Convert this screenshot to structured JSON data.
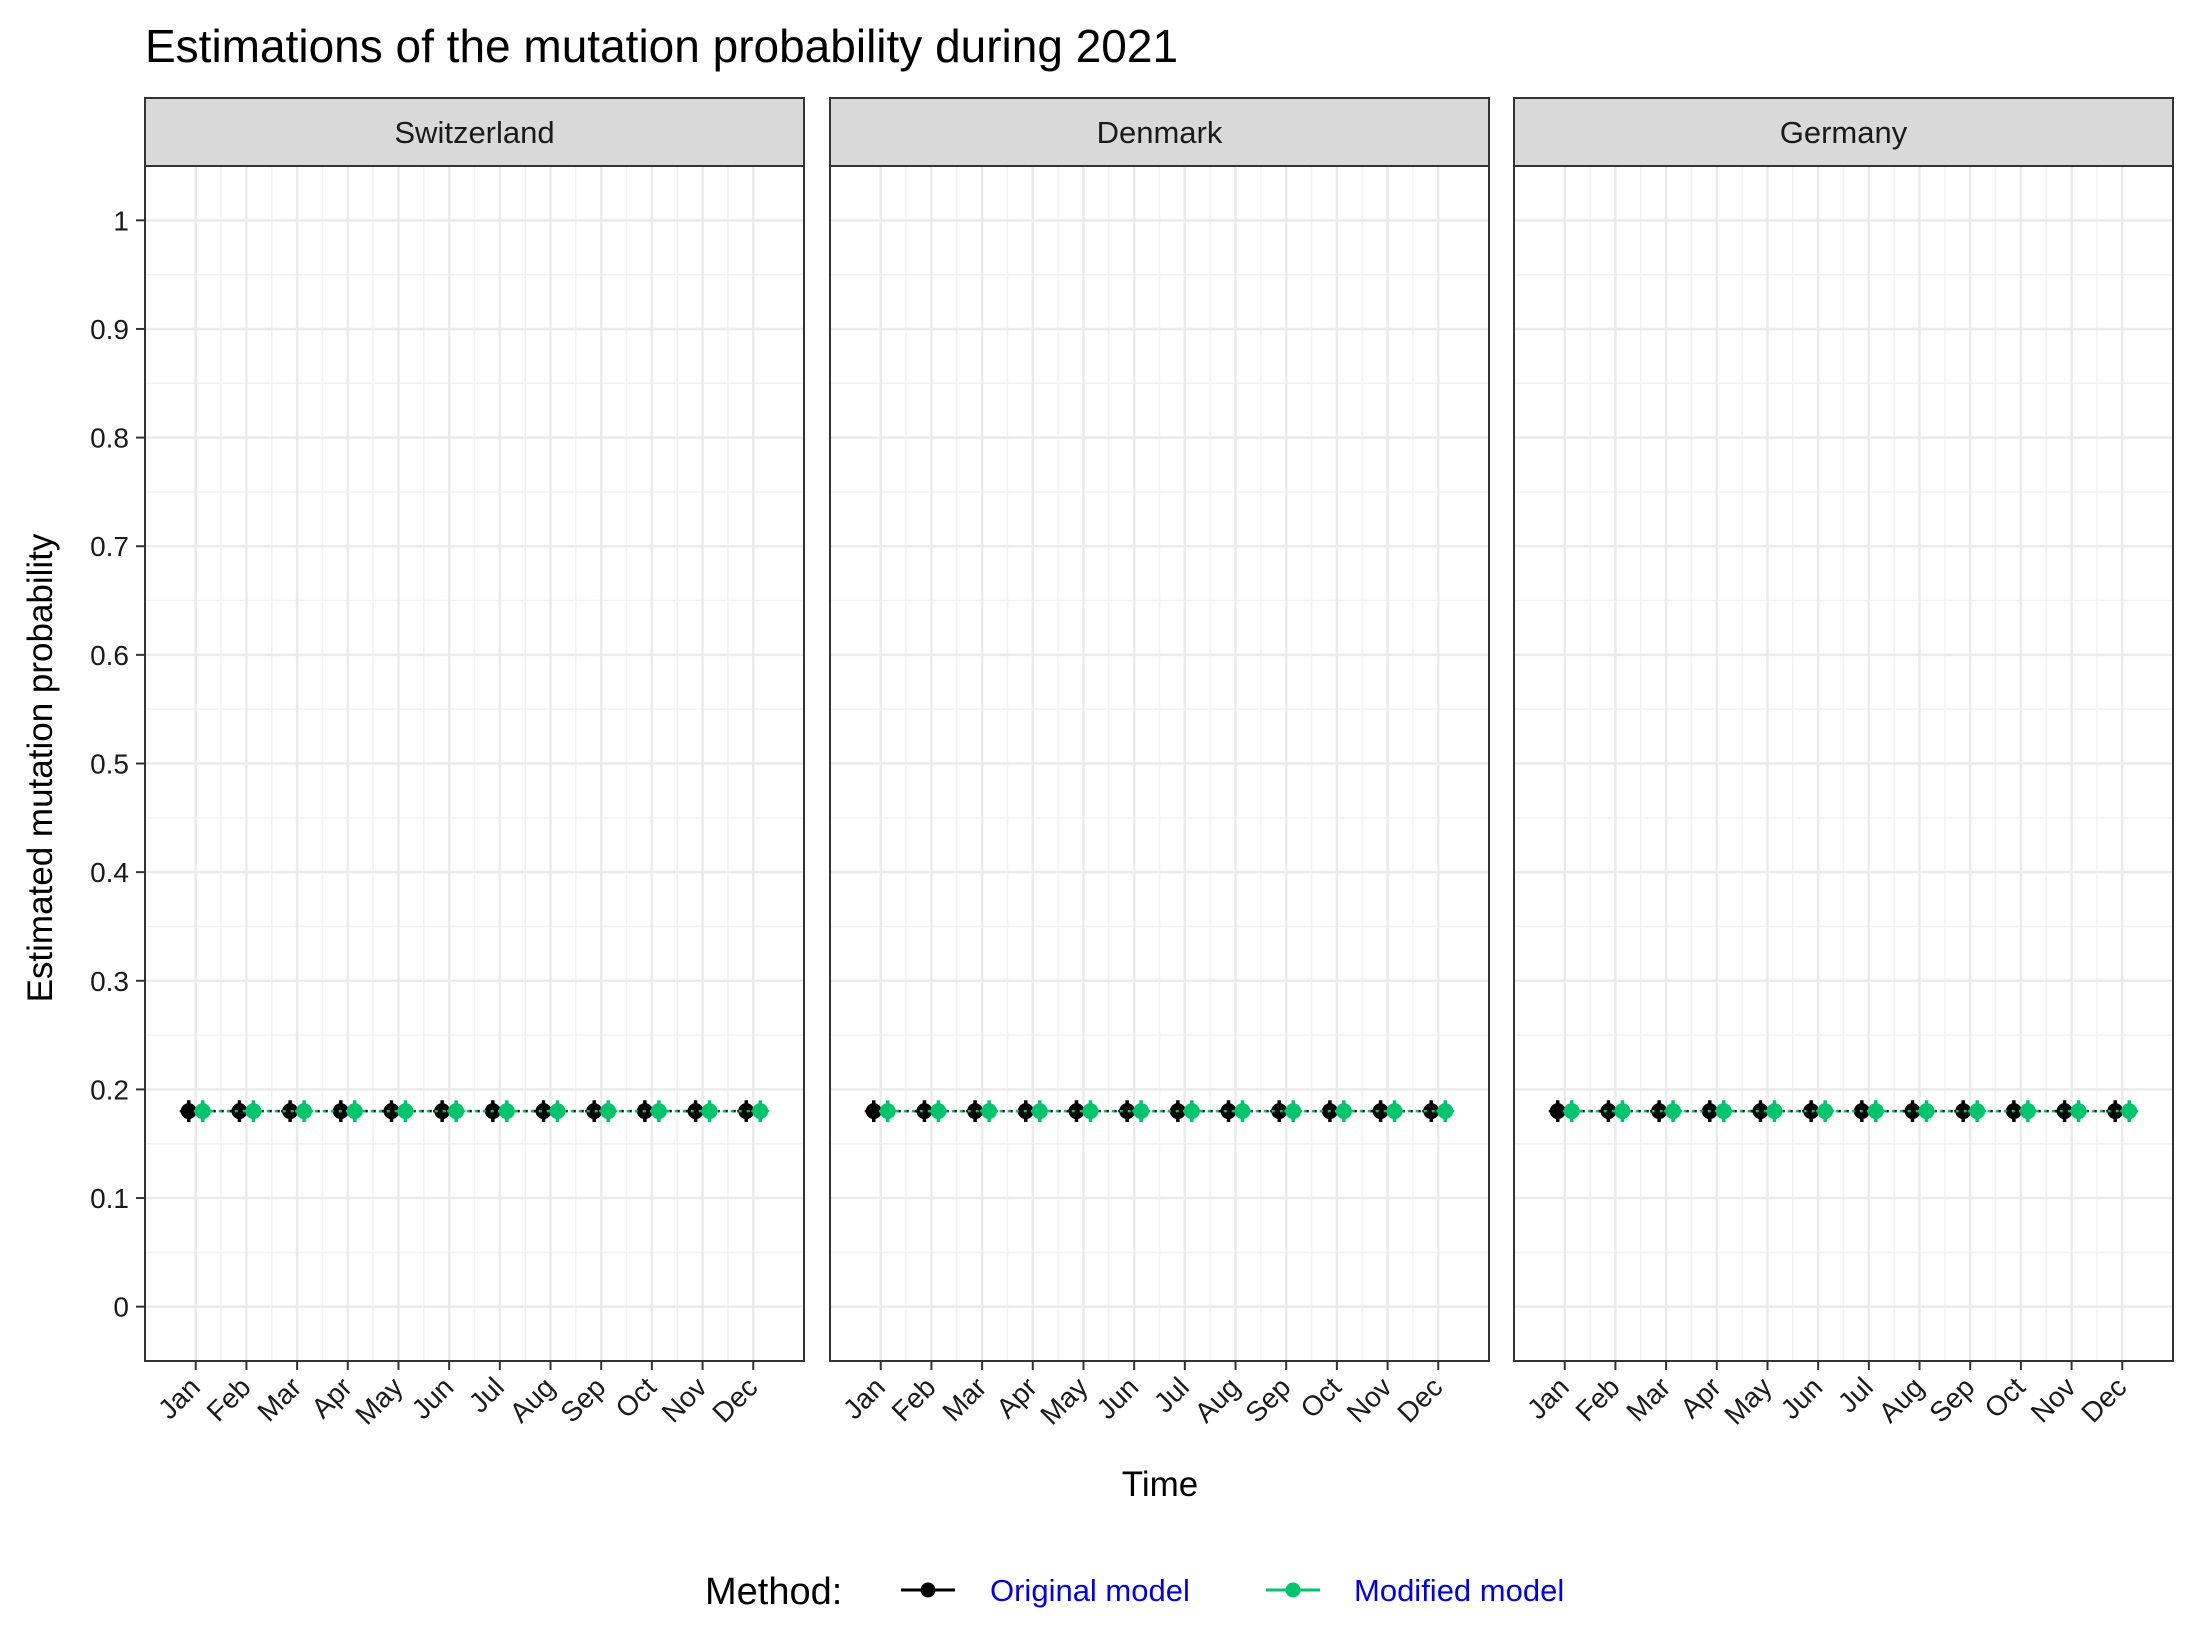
{
  "chart_data": {
    "type": "scatter",
    "title": "Estimations of the mutation probability during 2021",
    "xlabel": "Time",
    "ylabel": "Estimated mutation probability",
    "ylim": [
      -0.05,
      1.05
    ],
    "y_ticks": [
      0,
      0.1,
      0.2,
      0.3,
      0.4,
      0.5,
      0.6,
      0.7,
      0.8,
      0.9,
      1
    ],
    "y_tick_labels": [
      "0",
      "0.1",
      "0.2",
      "0.3",
      "0.4",
      "0.5",
      "0.6",
      "0.7",
      "0.8",
      "0.9",
      "1"
    ],
    "categories": [
      "Jan",
      "Feb",
      "Mar",
      "Apr",
      "May",
      "Jun",
      "Jul",
      "Aug",
      "Sep",
      "Oct",
      "Nov",
      "Dec"
    ],
    "grid": true,
    "legend": {
      "title": "Method:",
      "position": "bottom",
      "label_color": "#0000ee"
    },
    "panels": [
      {
        "name": "Switzerland",
        "series": [
          {
            "name": "Original model",
            "color": "#000000",
            "values": [
              0.18,
              0.18,
              0.18,
              0.18,
              0.18,
              0.18,
              0.18,
              0.18,
              0.18,
              0.18,
              0.18,
              0.18
            ],
            "error": 0.01
          },
          {
            "name": "Modified model",
            "color": "#00c56a",
            "values": [
              0.18,
              0.18,
              0.18,
              0.18,
              0.18,
              0.18,
              0.18,
              0.18,
              0.18,
              0.18,
              0.18,
              0.18
            ],
            "error": 0.01
          }
        ]
      },
      {
        "name": "Denmark",
        "series": [
          {
            "name": "Original model",
            "color": "#000000",
            "values": [
              0.18,
              0.18,
              0.18,
              0.18,
              0.18,
              0.18,
              0.18,
              0.18,
              0.18,
              0.18,
              0.18,
              0.18
            ],
            "error": 0.01
          },
          {
            "name": "Modified model",
            "color": "#00c56a",
            "values": [
              0.18,
              0.18,
              0.18,
              0.18,
              0.18,
              0.18,
              0.18,
              0.18,
              0.18,
              0.18,
              0.18,
              0.18
            ],
            "error": 0.01
          }
        ]
      },
      {
        "name": "Germany",
        "series": [
          {
            "name": "Original model",
            "color": "#000000",
            "values": [
              0.18,
              0.18,
              0.18,
              0.18,
              0.18,
              0.18,
              0.18,
              0.18,
              0.18,
              0.18,
              0.18,
              0.18
            ],
            "error": 0.01
          },
          {
            "name": "Modified model",
            "color": "#00c56a",
            "values": [
              0.18,
              0.18,
              0.18,
              0.18,
              0.18,
              0.18,
              0.18,
              0.18,
              0.18,
              0.18,
              0.18,
              0.18
            ],
            "error": 0.01
          }
        ]
      }
    ]
  }
}
